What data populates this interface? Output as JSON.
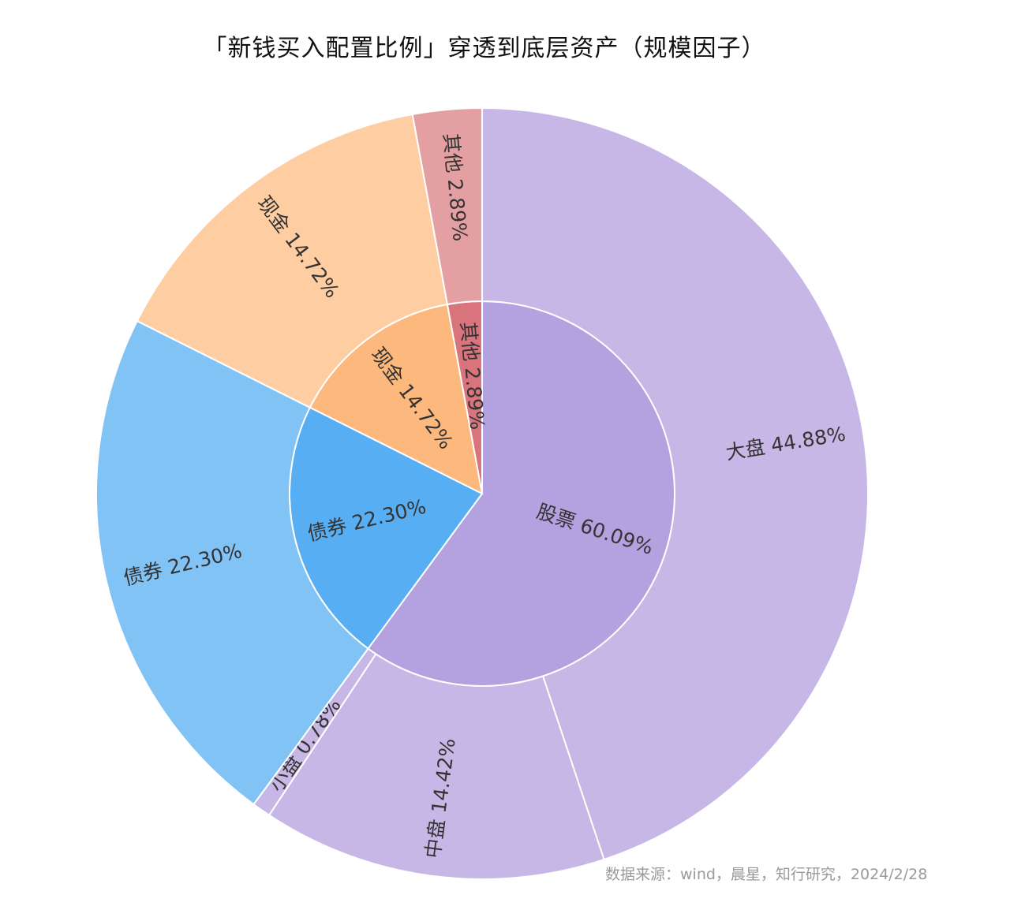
{
  "chart_data": {
    "type": "sunburst",
    "title": "「新钱买入配置比例」穿透到底层资产（规模因子）",
    "source": "数据来源：wind，晨星，知行研究，2024/2/28",
    "inner": [
      {
        "name": "股票",
        "value": 60.09,
        "label": "股票 60.09%",
        "color": "#b4a1e0"
      },
      {
        "name": "债券",
        "value": 22.3,
        "label": "债券 22.30%",
        "color": "#58aef2"
      },
      {
        "name": "现金",
        "value": 14.72,
        "label": "现金 14.72%",
        "color": "#fdb97d"
      },
      {
        "name": "其他",
        "value": 2.89,
        "label": "其他 2.89%",
        "color": "#d9737c"
      }
    ],
    "outer": [
      {
        "name": "大盘",
        "value": 44.88,
        "label": "大盘 44.88%",
        "color": "#c7b7e6"
      },
      {
        "name": "中盘",
        "value": 14.42,
        "label": "中盘 14.42%",
        "color": "#c7b7e6"
      },
      {
        "name": "小盘",
        "value": 0.78,
        "label": "小盘 0.78%",
        "color": "#c7b7e6"
      },
      {
        "name": "债券",
        "value": 22.3,
        "label": "债券 22.30%",
        "color": "#82c3f5"
      },
      {
        "name": "现金",
        "value": 14.72,
        "label": "现金 14.72%",
        "color": "#ffcda2"
      },
      {
        "name": "其他",
        "value": 2.89,
        "label": "其他 2.89%",
        "color": "#e49fa2"
      }
    ]
  }
}
